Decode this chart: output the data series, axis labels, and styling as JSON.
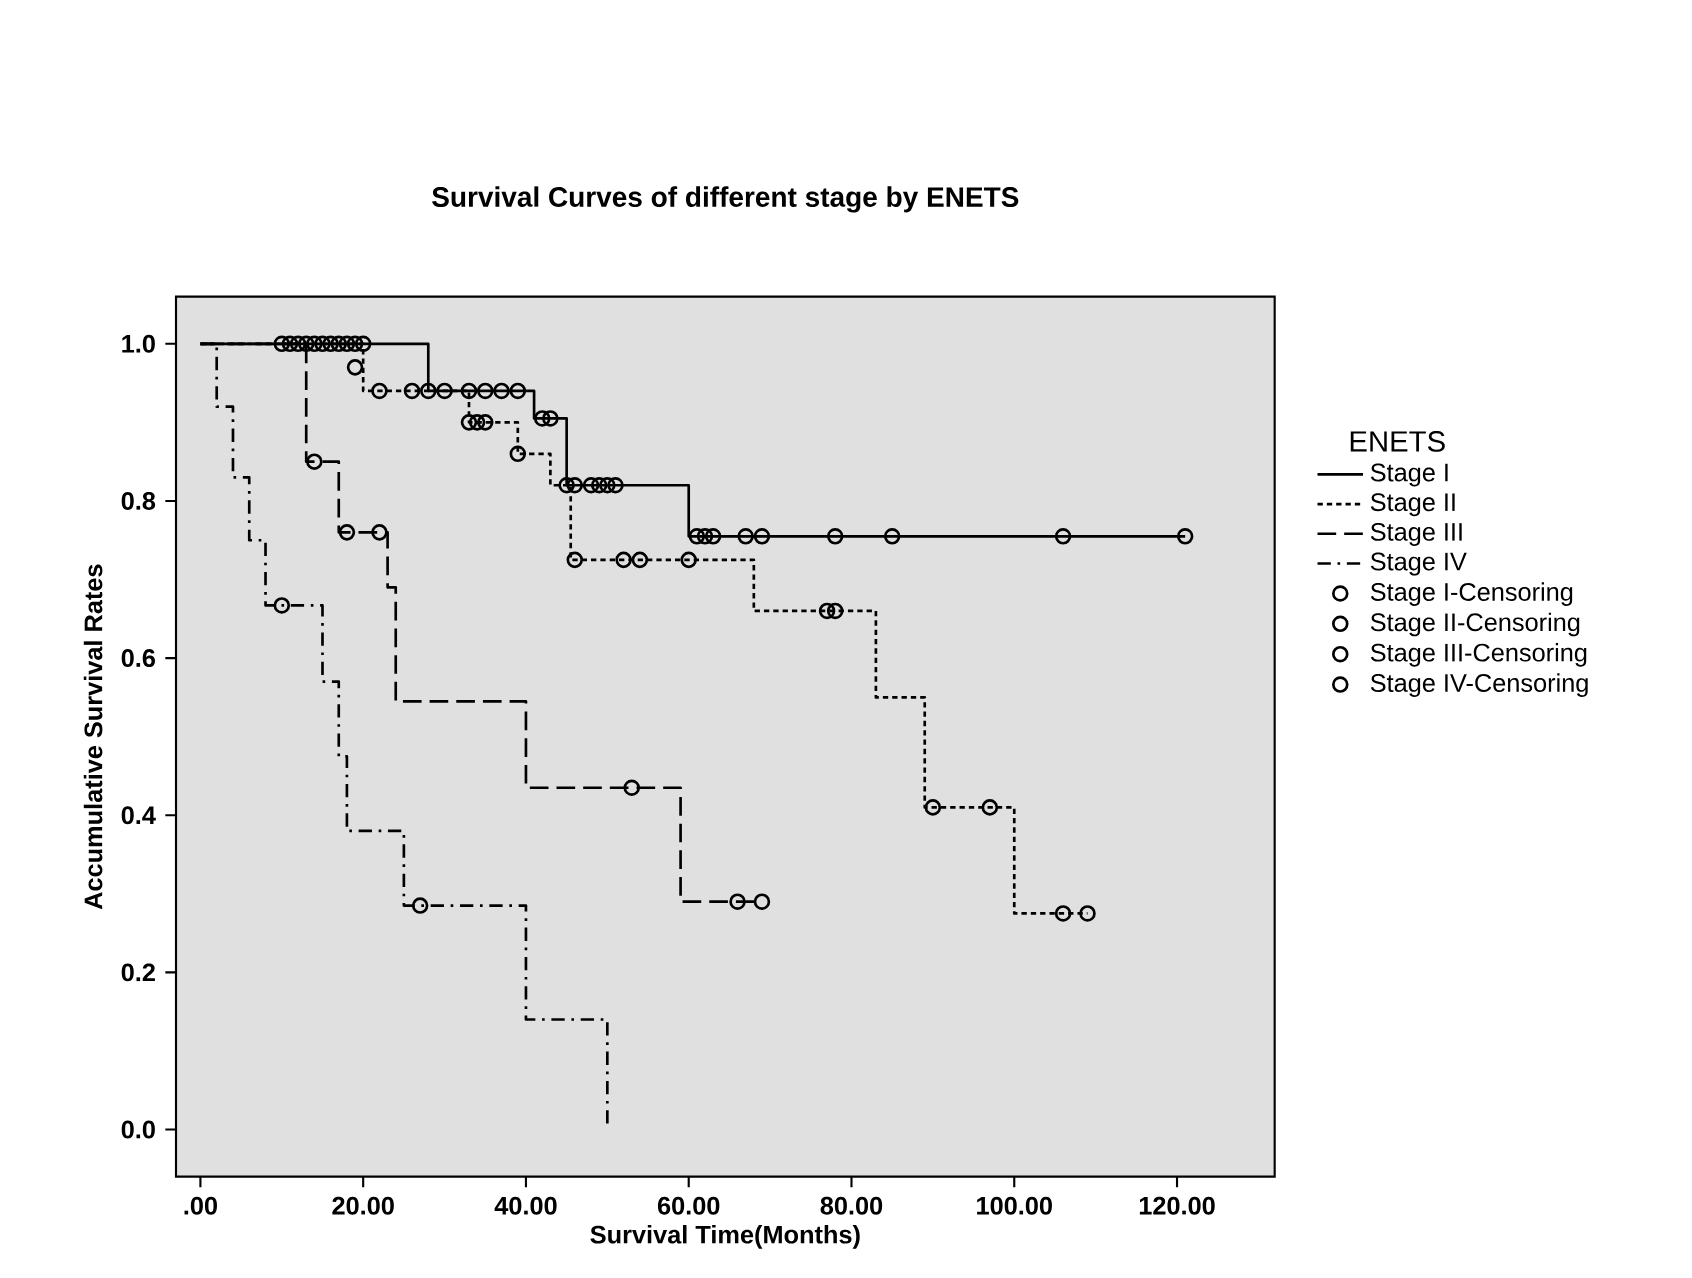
{
  "chart_data": {
    "type": "step",
    "title": "Survival Curves of different stage by ENETS",
    "xlabel": "Survival Time(Months)",
    "ylabel": "Accumulative Survival Rates",
    "legend_title": "ENETS",
    "legend": "right",
    "xlim": [
      -3,
      132
    ],
    "ylim": [
      -0.06,
      1.06
    ],
    "xticks": [
      {
        "value": 0,
        "label": ".00"
      },
      {
        "value": 20,
        "label": "20.00"
      },
      {
        "value": 40,
        "label": "40.00"
      },
      {
        "value": 60,
        "label": "60.00"
      },
      {
        "value": 80,
        "label": "80.00"
      },
      {
        "value": 100,
        "label": "100.00"
      },
      {
        "value": 120,
        "label": "120.00"
      }
    ],
    "yticks": [
      {
        "value": 0,
        "label": "0.0"
      },
      {
        "value": 0.2,
        "label": "0.2"
      },
      {
        "value": 0.4,
        "label": "0.4"
      },
      {
        "value": 0.6,
        "label": "0.6"
      },
      {
        "value": 0.8,
        "label": "0.8"
      },
      {
        "value": 1,
        "label": "1.0"
      }
    ],
    "series": [
      {
        "name": "Stage I",
        "color": "#000000",
        "line_style": "solid",
        "marker": "none",
        "x": [
          0,
          28,
          41,
          45,
          60,
          121
        ],
        "values": [
          1.0,
          0.94,
          0.905,
          0.82,
          0.755,
          0.755
        ]
      },
      {
        "name": "Stage II",
        "color": "#000000",
        "line_style": "dotted",
        "marker": "none",
        "x": [
          0,
          20,
          33,
          39,
          43,
          45.5,
          68,
          83,
          89,
          100,
          109
        ],
        "values": [
          1.0,
          0.94,
          0.9,
          0.86,
          0.82,
          0.725,
          0.66,
          0.55,
          0.41,
          0.275,
          0.275
        ]
      },
      {
        "name": "Stage III",
        "color": "#000000",
        "line_style": "dashed",
        "marker": "none",
        "x": [
          0,
          13,
          17,
          23,
          24,
          40,
          59,
          69
        ],
        "values": [
          1.0,
          0.85,
          0.76,
          0.69,
          0.545,
          0.435,
          0.29,
          0.29
        ]
      },
      {
        "name": "Stage IV",
        "color": "#000000",
        "line_style": "dashdot",
        "marker": "none",
        "x": [
          0,
          2,
          4,
          6,
          8,
          15,
          17,
          18,
          25,
          40,
          50
        ],
        "values": [
          1.0,
          0.92,
          0.83,
          0.75,
          0.667,
          0.57,
          0.475,
          0.38,
          0.285,
          0.14,
          0.0
        ]
      },
      {
        "name": "Stage I-Censoring",
        "type": "scatter",
        "color": "#000000",
        "marker": "circle",
        "x": [
          10,
          11,
          12,
          13,
          14,
          15,
          16,
          17,
          18,
          19,
          20,
          30,
          33,
          35,
          37,
          39,
          42,
          43,
          46,
          48,
          49,
          50,
          51,
          61,
          62,
          63,
          67,
          69,
          78,
          85,
          106,
          121
        ],
        "values": [
          1,
          1,
          1,
          1,
          1,
          1,
          1,
          1,
          1,
          1,
          1,
          0.94,
          0.94,
          0.94,
          0.94,
          0.94,
          0.905,
          0.905,
          0.82,
          0.82,
          0.82,
          0.82,
          0.82,
          0.755,
          0.755,
          0.755,
          0.755,
          0.755,
          0.755,
          0.755,
          0.755,
          0.755
        ]
      },
      {
        "name": "Stage II-Censoring",
        "type": "scatter",
        "color": "#000000",
        "marker": "circle",
        "x": [
          19,
          22,
          26,
          28,
          33,
          34,
          35,
          39,
          45,
          46,
          52,
          54,
          60,
          77,
          78,
          90,
          97,
          106,
          109
        ],
        "values": [
          0.97,
          0.94,
          0.94,
          0.94,
          0.9,
          0.9,
          0.9,
          0.86,
          0.82,
          0.725,
          0.725,
          0.725,
          0.725,
          0.66,
          0.66,
          0.41,
          0.41,
          0.275,
          0.275
        ]
      },
      {
        "name": "Stage III-Censoring",
        "type": "scatter",
        "color": "#000000",
        "marker": "circle",
        "x": [
          14,
          18,
          22,
          53,
          66,
          69
        ],
        "values": [
          0.85,
          0.76,
          0.76,
          0.435,
          0.29,
          0.29
        ]
      },
      {
        "name": "Stage IV-Censoring",
        "type": "scatter",
        "color": "#000000",
        "marker": "circle",
        "x": [
          10,
          27
        ],
        "values": [
          0.667,
          0.285
        ]
      }
    ]
  }
}
